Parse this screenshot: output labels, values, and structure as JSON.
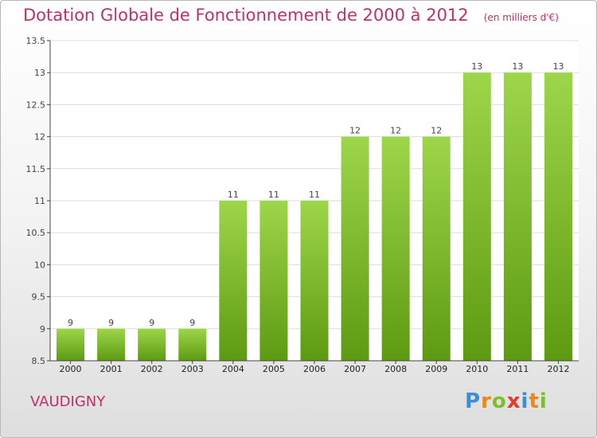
{
  "header": {
    "title": "Dotation Globale de Fonctionnement de 2000 à 2012",
    "unit": "(en milliers d'€)"
  },
  "town": "VAUDIGNY",
  "logo": {
    "text": "Proxiti",
    "letters": [
      {
        "ch": "P",
        "color": "#3a8fd6"
      },
      {
        "ch": "r",
        "color": "#e8891a"
      },
      {
        "ch": "o",
        "color": "#7bbf2a"
      },
      {
        "ch": "x",
        "color": "#e53a2a"
      },
      {
        "ch": "i",
        "color": "#3a8fd6"
      },
      {
        "ch": "t",
        "color": "#e8891a"
      },
      {
        "ch": "i",
        "color": "#7bbf2a"
      }
    ]
  },
  "colors": {
    "bar_top": "#9ed64a",
    "bar_bottom": "#5d9a12",
    "grid": "#dddddd",
    "accent": "#c0306a"
  },
  "chart_data": {
    "type": "bar",
    "title": "Dotation Globale de Fonctionnement de 2000 à 2012",
    "subtitle": "(en milliers d'€)",
    "categories": [
      "2000",
      "2001",
      "2002",
      "2003",
      "2004",
      "2005",
      "2006",
      "2007",
      "2008",
      "2009",
      "2010",
      "2011",
      "2012"
    ],
    "values": [
      9,
      9,
      9,
      9,
      11,
      11,
      11,
      12,
      12,
      12,
      13,
      13,
      13
    ],
    "value_labels": [
      "9",
      "9",
      "9",
      "9",
      "11",
      "11",
      "11",
      "12",
      "12",
      "12",
      "13",
      "13",
      "13"
    ],
    "yticks": [
      "8.5",
      "9",
      "9.5",
      "10",
      "10.5",
      "11",
      "11.5",
      "12",
      "12.5",
      "13",
      "13.5"
    ],
    "ylim": [
      8.5,
      13.5
    ],
    "grid": true,
    "xlabel": "",
    "ylabel": ""
  }
}
